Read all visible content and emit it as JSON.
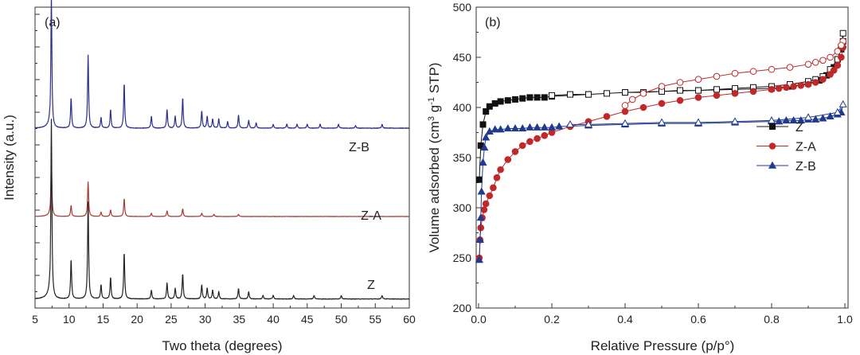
{
  "chart_data": [
    {
      "type": "line",
      "panel_label": "(a)",
      "xlabel": "Two theta (degrees)",
      "ylabel": "Intensity (a.u.)",
      "xlim": [
        5,
        60
      ],
      "x_ticks": [
        5,
        10,
        15,
        20,
        25,
        30,
        35,
        40,
        45,
        50,
        55,
        60
      ],
      "y_ticks_labeled": false,
      "grid": false,
      "legend": "none",
      "series": [
        {
          "name": "Z-B",
          "color": "#2b2f8a",
          "baseline": 0.6,
          "scale": 0.45,
          "noise": 0.004,
          "peaks": [
            [
              7.4,
              1.0
            ],
            [
              10.3,
              0.23
            ],
            [
              12.8,
              0.55
            ],
            [
              14.7,
              0.08
            ],
            [
              16.1,
              0.14
            ],
            [
              18.1,
              0.34
            ],
            [
              22.1,
              0.09
            ],
            [
              24.4,
              0.14
            ],
            [
              25.6,
              0.09
            ],
            [
              26.7,
              0.23
            ],
            [
              29.5,
              0.13
            ],
            [
              30.3,
              0.09
            ],
            [
              31.1,
              0.07
            ],
            [
              32.0,
              0.07
            ],
            [
              33.3,
              0.05
            ],
            [
              34.9,
              0.1
            ],
            [
              36.4,
              0.06
            ],
            [
              37.5,
              0.04
            ],
            [
              40.0,
              0.03
            ],
            [
              42.0,
              0.03
            ],
            [
              43.5,
              0.03
            ],
            [
              45.0,
              0.03
            ],
            [
              46.9,
              0.03
            ],
            [
              49.6,
              0.03
            ],
            [
              52.1,
              0.02
            ],
            [
              56.0,
              0.03
            ]
          ]
        },
        {
          "name": "Z-A",
          "color": "#a83a34",
          "baseline": 0.3,
          "scale": 0.19,
          "noise": 0.005,
          "peaks": [
            [
              7.4,
              1.0
            ],
            [
              10.3,
              0.2
            ],
            [
              12.8,
              0.62
            ],
            [
              14.7,
              0.08
            ],
            [
              16.1,
              0.12
            ],
            [
              18.1,
              0.32
            ],
            [
              22.1,
              0.06
            ],
            [
              24.4,
              0.1
            ],
            [
              26.7,
              0.14
            ],
            [
              29.5,
              0.06
            ],
            [
              31.3,
              0.04
            ],
            [
              34.9,
              0.04
            ]
          ]
        },
        {
          "name": "Z",
          "color": "#222222",
          "baseline": 0.02,
          "scale": 0.61,
          "noise": 0.003,
          "peaks": [
            [
              7.4,
              1.0
            ],
            [
              10.3,
              0.22
            ],
            [
              12.8,
              0.54
            ],
            [
              14.7,
              0.08
            ],
            [
              16.1,
              0.12
            ],
            [
              18.1,
              0.26
            ],
            [
              22.1,
              0.05
            ],
            [
              24.4,
              0.09
            ],
            [
              25.6,
              0.06
            ],
            [
              26.7,
              0.14
            ],
            [
              29.5,
              0.08
            ],
            [
              30.3,
              0.06
            ],
            [
              31.1,
              0.05
            ],
            [
              32.0,
              0.04
            ],
            [
              34.9,
              0.06
            ],
            [
              36.4,
              0.04
            ],
            [
              38.5,
              0.02
            ],
            [
              40.0,
              0.02
            ],
            [
              43.0,
              0.02
            ],
            [
              46.0,
              0.02
            ],
            [
              50.0,
              0.02
            ],
            [
              56.0,
              0.02
            ]
          ]
        }
      ]
    },
    {
      "type": "scatter",
      "panel_label": "(b)",
      "xlabel": "Relative Pressure (p/p°)",
      "ylabel_parts": [
        "Volume adsorbed (cm",
        "3",
        " g",
        "-1",
        " STP)"
      ],
      "xlim": [
        0,
        1.0
      ],
      "ylim": [
        200,
        500
      ],
      "x_ticks": [
        0.0,
        0.2,
        0.4,
        0.6,
        0.8,
        1.0
      ],
      "y_ticks": [
        200,
        250,
        300,
        350,
        400,
        450,
        500
      ],
      "grid": false,
      "legend": "center-right",
      "series": [
        {
          "name": "Z",
          "color": "#111111",
          "marker": "square",
          "adsorption": [
            [
              0.002,
              328
            ],
            [
              0.006,
              362
            ],
            [
              0.012,
              383
            ],
            [
              0.02,
              396
            ],
            [
              0.03,
              401
            ],
            [
              0.045,
              404
            ],
            [
              0.06,
              406
            ],
            [
              0.08,
              407
            ],
            [
              0.1,
              408
            ],
            [
              0.12,
              409
            ],
            [
              0.14,
              410
            ],
            [
              0.16,
              410
            ],
            [
              0.18,
              410
            ],
            [
              0.2,
              411
            ],
            [
              0.3,
              413
            ],
            [
              0.4,
              415
            ],
            [
              0.5,
              416
            ],
            [
              0.6,
              417
            ],
            [
              0.7,
              418
            ],
            [
              0.8,
              419
            ],
            [
              0.85,
              421
            ],
            [
              0.9,
              424
            ],
            [
              0.93,
              427
            ],
            [
              0.95,
              432
            ],
            [
              0.97,
              440
            ],
            [
              0.98,
              448
            ],
            [
              0.99,
              458
            ],
            [
              0.995,
              466
            ]
          ],
          "desorption": [
            [
              0.995,
              474
            ],
            [
              0.99,
              460
            ],
            [
              0.98,
              448
            ],
            [
              0.96,
              438
            ],
            [
              0.94,
              431
            ],
            [
              0.92,
              428
            ],
            [
              0.9,
              426
            ],
            [
              0.85,
              423
            ],
            [
              0.8,
              421
            ],
            [
              0.75,
              420
            ],
            [
              0.7,
              419
            ],
            [
              0.65,
              418
            ],
            [
              0.6,
              417
            ],
            [
              0.55,
              417
            ],
            [
              0.5,
              416
            ],
            [
              0.45,
              415
            ],
            [
              0.4,
              415
            ],
            [
              0.35,
              414
            ],
            [
              0.3,
              413
            ],
            [
              0.25,
              413
            ],
            [
              0.2,
              412
            ]
          ]
        },
        {
          "name": "Z-A",
          "color": "#c0282a",
          "marker": "circle",
          "adsorption": [
            [
              0.002,
              250
            ],
            [
              0.004,
              268
            ],
            [
              0.006,
              280
            ],
            [
              0.01,
              290
            ],
            [
              0.015,
              298
            ],
            [
              0.02,
              304
            ],
            [
              0.03,
              312
            ],
            [
              0.04,
              320
            ],
            [
              0.05,
              330
            ],
            [
              0.06,
              338
            ],
            [
              0.08,
              348
            ],
            [
              0.1,
              356
            ],
            [
              0.12,
              362
            ],
            [
              0.14,
              366
            ],
            [
              0.16,
              369
            ],
            [
              0.18,
              372
            ],
            [
              0.2,
              375
            ],
            [
              0.25,
              381
            ],
            [
              0.3,
              386
            ],
            [
              0.35,
              391
            ],
            [
              0.4,
              396
            ],
            [
              0.45,
              400
            ],
            [
              0.5,
              404
            ],
            [
              0.55,
              407
            ],
            [
              0.6,
              410
            ],
            [
              0.65,
              412
            ],
            [
              0.7,
              414
            ],
            [
              0.75,
              416
            ],
            [
              0.8,
              418
            ],
            [
              0.82,
              419
            ],
            [
              0.84,
              420
            ],
            [
              0.86,
              421
            ],
            [
              0.88,
              422
            ],
            [
              0.9,
              423
            ],
            [
              0.92,
              425
            ],
            [
              0.94,
              428
            ],
            [
              0.96,
              433
            ],
            [
              0.97,
              437
            ],
            [
              0.98,
              442
            ],
            [
              0.99,
              450
            ],
            [
              0.995,
              460
            ]
          ],
          "desorption": [
            [
              0.995,
              466
            ],
            [
              0.99,
              462
            ],
            [
              0.98,
              456
            ],
            [
              0.96,
              450
            ],
            [
              0.94,
              447
            ],
            [
              0.92,
              445
            ],
            [
              0.9,
              443
            ],
            [
              0.85,
              440
            ],
            [
              0.8,
              438
            ],
            [
              0.75,
              436
            ],
            [
              0.7,
              434
            ],
            [
              0.65,
              431
            ],
            [
              0.6,
              428
            ],
            [
              0.55,
              425
            ],
            [
              0.5,
              421
            ],
            [
              0.45,
              414
            ],
            [
              0.42,
              408
            ],
            [
              0.4,
              402
            ]
          ]
        },
        {
          "name": "Z-B",
          "color": "#1f3a8f",
          "marker": "triangle",
          "adsorption": [
            [
              0.002,
              248
            ],
            [
              0.004,
              268
            ],
            [
              0.006,
              290
            ],
            [
              0.008,
              316
            ],
            [
              0.012,
              345
            ],
            [
              0.016,
              360
            ],
            [
              0.02,
              370
            ],
            [
              0.03,
              376
            ],
            [
              0.045,
              378
            ],
            [
              0.06,
              378
            ],
            [
              0.08,
              379
            ],
            [
              0.1,
              379
            ],
            [
              0.12,
              379
            ],
            [
              0.14,
              380
            ],
            [
              0.16,
              380
            ],
            [
              0.18,
              380
            ],
            [
              0.2,
              380
            ],
            [
              0.22,
              381
            ],
            [
              0.3,
              382
            ],
            [
              0.4,
              383
            ],
            [
              0.5,
              384
            ],
            [
              0.6,
              384
            ],
            [
              0.7,
              385
            ],
            [
              0.8,
              386
            ],
            [
              0.82,
              386
            ],
            [
              0.84,
              387
            ],
            [
              0.86,
              387
            ],
            [
              0.88,
              387
            ],
            [
              0.9,
              388
            ],
            [
              0.92,
              388
            ],
            [
              0.94,
              389
            ],
            [
              0.96,
              391
            ],
            [
              0.98,
              393
            ],
            [
              0.99,
              395
            ]
          ],
          "desorption": [
            [
              0.995,
              403
            ],
            [
              0.98,
              395
            ],
            [
              0.9,
              390
            ],
            [
              0.8,
              387
            ],
            [
              0.7,
              386
            ],
            [
              0.6,
              385
            ],
            [
              0.5,
              385
            ],
            [
              0.4,
              384
            ],
            [
              0.3,
              383
            ],
            [
              0.25,
              383
            ]
          ]
        }
      ]
    }
  ]
}
